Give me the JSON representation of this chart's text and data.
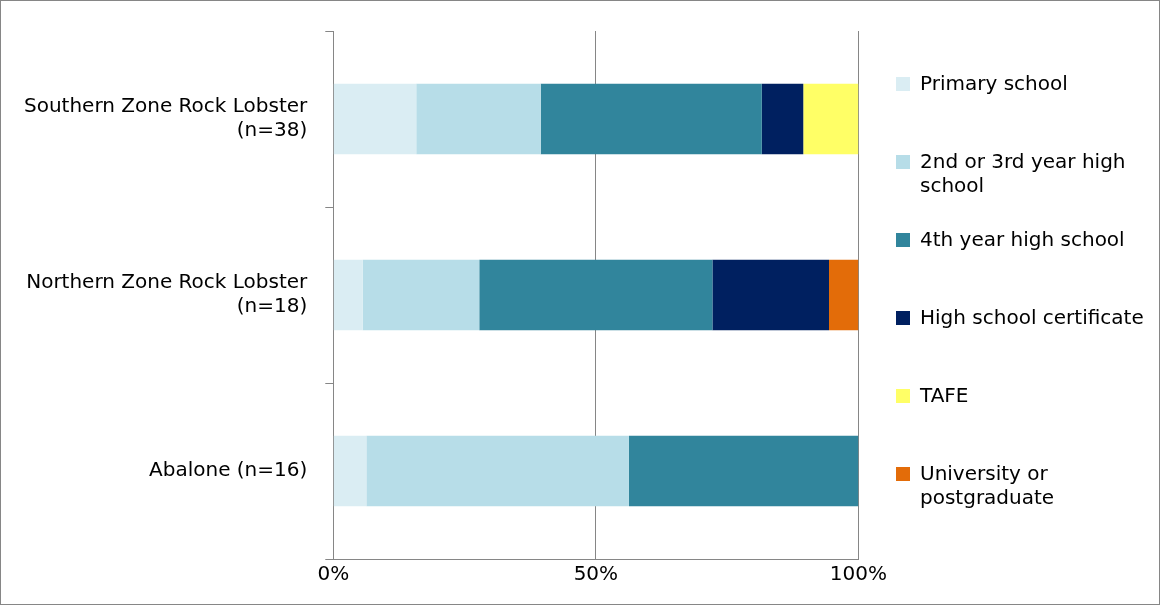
{
  "chart_data": {
    "type": "bar",
    "orientation": "horizontal",
    "stacked": true,
    "categories": [
      "Southern Zone Rock Lobster (n=38)",
      "Northern Zone Rock Lobster (n=18)",
      "Abalone (n=16)"
    ],
    "series": [
      {
        "name": "Primary school",
        "color": "#daedf3",
        "values": [
          15.8,
          5.6,
          6.3
        ]
      },
      {
        "name": "2nd or 3rd year high school",
        "color": "#b7dde8",
        "values": [
          23.7,
          22.2,
          50
        ]
      },
      {
        "name": "4th year high school",
        "color": "#31859c",
        "values": [
          42.1,
          44.4,
          43.7
        ]
      },
      {
        "name": "High school certificate",
        "color": "#002060",
        "values": [
          7.9,
          22.2,
          null
        ]
      },
      {
        "name": "TAFE",
        "color": "#ffff66",
        "values": [
          10.5,
          null,
          null
        ]
      },
      {
        "name": "University or postgraduate",
        "color": "#e36c09",
        "values": [
          null,
          5.6,
          null
        ]
      }
    ],
    "xlim": [
      0,
      100
    ],
    "xticks": [
      {
        "value": 0,
        "label": "0%"
      },
      {
        "value": 50,
        "label": "50%"
      },
      {
        "value": 100,
        "label": "100%"
      }
    ],
    "grid": "x",
    "legend": "right"
  }
}
